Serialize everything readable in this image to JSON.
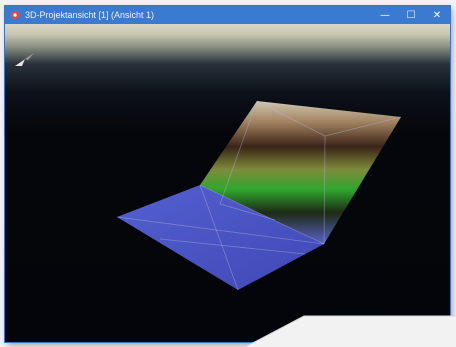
{
  "window": {
    "title": "3D-Projektansicht [1] (Ansicht 1)",
    "controls": {
      "minimize": "—",
      "maximize": "☐",
      "close": "✕"
    }
  },
  "colors": {
    "titlebar": "#3b7ad1",
    "floor_surface": "#4a55c8",
    "background_bottom": "#05060b",
    "sky_top": "#d9d6c6"
  },
  "icons": {
    "app": "app-icon",
    "navigation": "navigation-arrow-icon"
  }
}
